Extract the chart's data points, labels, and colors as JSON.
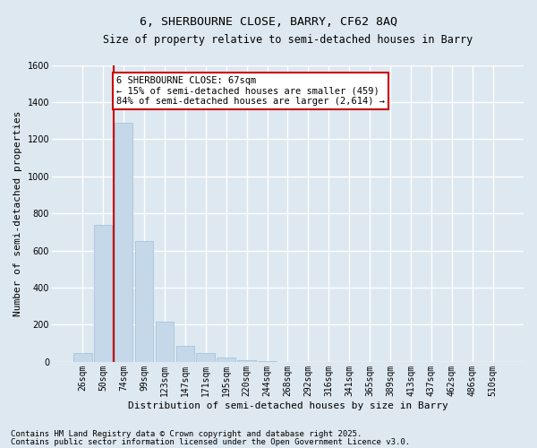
{
  "title1": "6, SHERBOURNE CLOSE, BARRY, CF62 8AQ",
  "title2": "Size of property relative to semi-detached houses in Barry",
  "xlabel": "Distribution of semi-detached houses by size in Barry",
  "ylabel": "Number of semi-detached properties",
  "categories": [
    "26sqm",
    "50sqm",
    "74sqm",
    "99sqm",
    "123sqm",
    "147sqm",
    "171sqm",
    "195sqm",
    "220sqm",
    "244sqm",
    "268sqm",
    "292sqm",
    "316sqm",
    "341sqm",
    "365sqm",
    "389sqm",
    "413sqm",
    "437sqm",
    "462sqm",
    "486sqm",
    "510sqm"
  ],
  "bar_heights": [
    50,
    740,
    1290,
    650,
    215,
    85,
    50,
    25,
    10,
    5,
    2,
    0,
    0,
    0,
    0,
    0,
    0,
    0,
    0,
    0,
    0
  ],
  "bar_color": "#c5d8ea",
  "bar_edgecolor": "#a8c4d8",
  "vline_x_index": 1.5,
  "vline_color": "#cc0000",
  "annotation_line1": "6 SHERBOURNE CLOSE: 67sqm",
  "annotation_line2": "← 15% of semi-detached houses are smaller (459)",
  "annotation_line3": "84% of semi-detached houses are larger (2,614) →",
  "annotation_box_color": "#ffffff",
  "annotation_box_edgecolor": "#cc0000",
  "ylim": [
    0,
    1600
  ],
  "yticks": [
    0,
    200,
    400,
    600,
    800,
    1000,
    1200,
    1400,
    1600
  ],
  "background_color": "#dde8f0",
  "plot_background": "#dde8f0",
  "footer_line1": "Contains HM Land Registry data © Crown copyright and database right 2025.",
  "footer_line2": "Contains public sector information licensed under the Open Government Licence v3.0.",
  "grid_color": "#ffffff",
  "title_fontsize": 9.5,
  "subtitle_fontsize": 8.5,
  "axis_label_fontsize": 8,
  "tick_fontsize": 7,
  "annotation_fontsize": 7.5,
  "footer_fontsize": 6.5
}
